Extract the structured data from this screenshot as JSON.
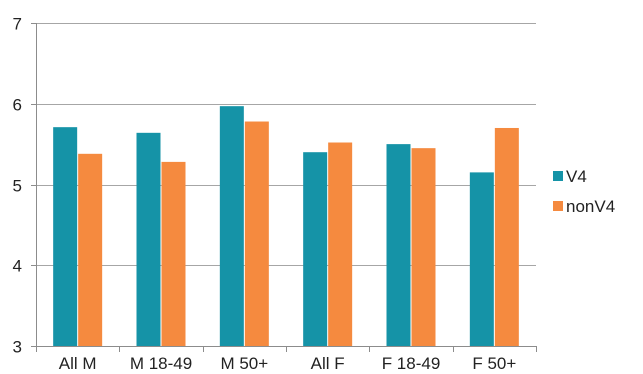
{
  "chart_data": {
    "type": "bar",
    "title": "",
    "xlabel": "",
    "ylabel": "",
    "categories": [
      "All M",
      "M 18-49",
      "M 50+",
      "All F",
      "F 18-49",
      "F 50+"
    ],
    "series": [
      {
        "name": "V4",
        "values": [
          5.71,
          5.64,
          5.97,
          5.4,
          5.5,
          5.15
        ]
      },
      {
        "name": "nonV4",
        "values": [
          5.38,
          5.28,
          5.78,
          5.52,
          5.45,
          5.7
        ]
      }
    ],
    "ylim": [
      3,
      7
    ],
    "yticks": [
      3,
      4,
      5,
      6,
      7
    ],
    "grid": true,
    "legend_position": "right",
    "colors": {
      "V4": "#1593a7",
      "nonV4": "#f58a3f",
      "grid": "#a6a6a6",
      "axis": "#8c8c8c"
    }
  }
}
